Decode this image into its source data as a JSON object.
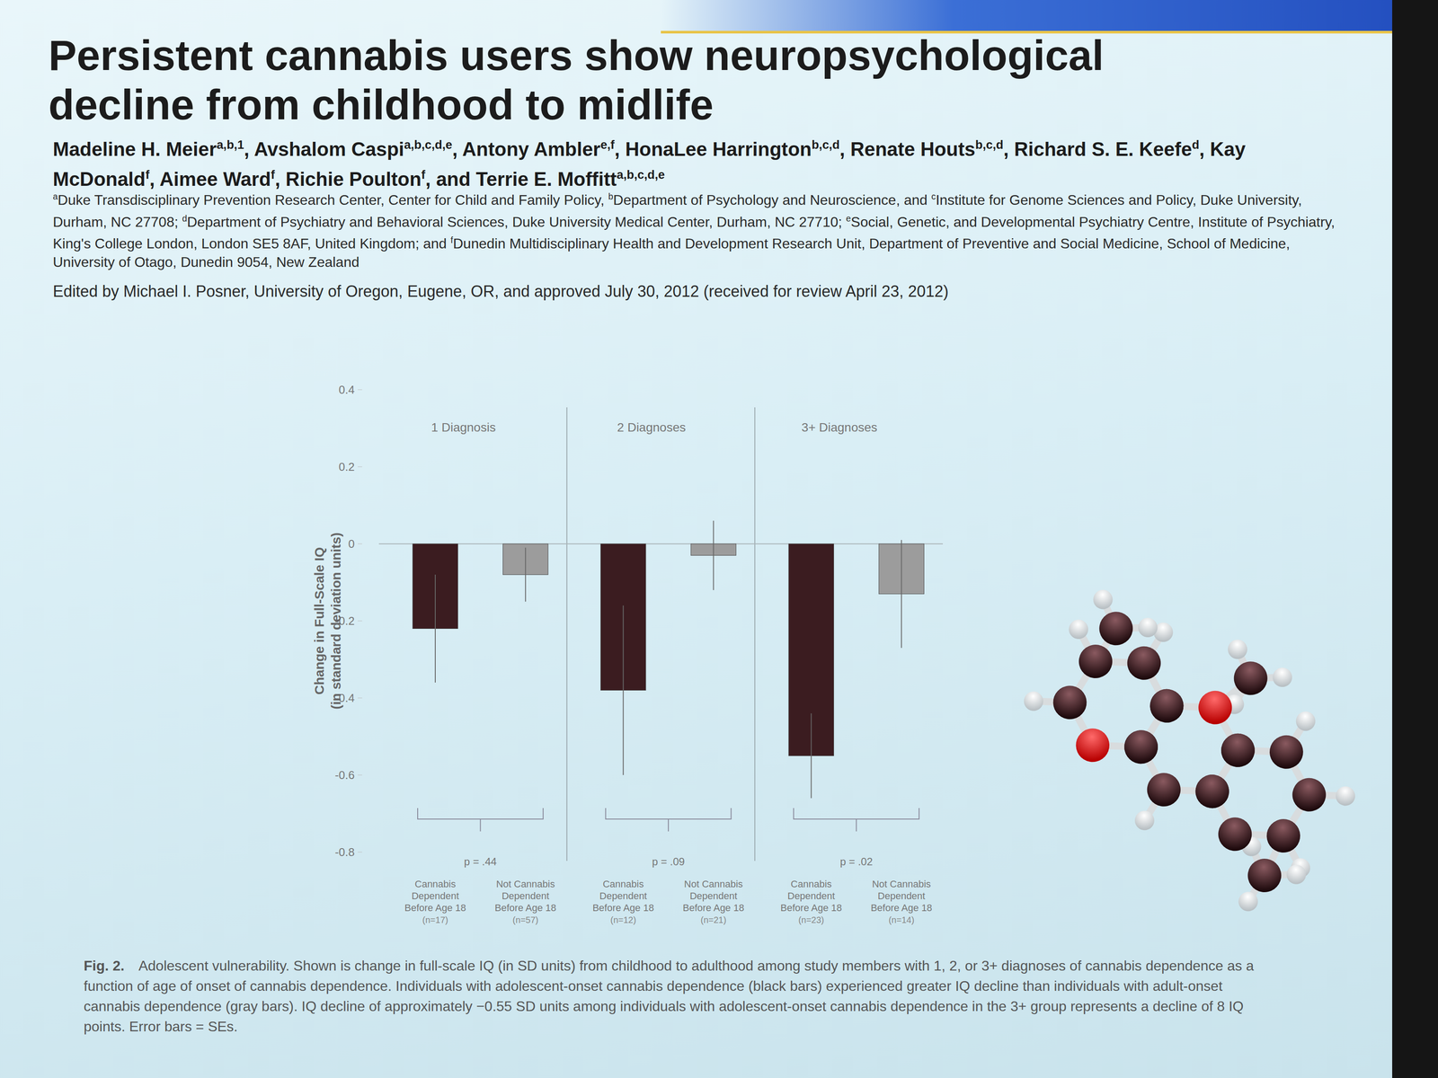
{
  "paper": {
    "title": [
      "Persistent cannabis users show neuropsychological",
      "decline from childhood to midlife"
    ],
    "authors": [
      {
        "text": "Madeline H. Meier",
        "sup": "a,b,1"
      },
      {
        "text": ", Avshalom Caspi",
        "sup": "a,b,c,d,e"
      },
      {
        "text": ", Antony Ambler",
        "sup": "e,f"
      },
      {
        "text": ", HonaLee Harrington",
        "sup": "b,c,d"
      },
      {
        "text": ", Renate Houts",
        "sup": "b,c,d"
      },
      {
        "text": ", Richard S. E. Keefe",
        "sup": "d"
      },
      {
        "text": ", Kay McDonald",
        "sup": "f"
      },
      {
        "text": ", Aimee Ward",
        "sup": "f"
      },
      {
        "text": ", Richie Poulton",
        "sup": "f"
      },
      {
        "text": ", and Terrie E. Moffitt",
        "sup": "a,b,c,d,e"
      }
    ],
    "affiliations": [
      {
        "sup": "a",
        "text": "Duke Transdisciplinary Prevention Research Center, Center for Child and Family Policy, "
      },
      {
        "sup": "b",
        "text": "Department of Psychology and Neuroscience, and "
      },
      {
        "sup": "c",
        "text": "Institute for Genome Sciences and Policy, Duke University, Durham, NC 27708; "
      },
      {
        "sup": "d",
        "text": "Department of Psychiatry and Behavioral Sciences, Duke University Medical Center, Durham, NC 27710; "
      },
      {
        "sup": "e",
        "text": "Social, Genetic, and Developmental Psychiatry Centre, Institute of Psychiatry, King's College London, London SE5 8AF, United Kingdom; and "
      },
      {
        "sup": "f",
        "text": "Dunedin Multidisciplinary Health and Development Research Unit, Department of Preventive and Social Medicine, School of Medicine, University of Otago, Dunedin 9054, New Zealand"
      }
    ],
    "edited_by": "Edited by Michael I. Posner, University of Oregon, Eugene, OR, and approved July 30, 2012 (received for review April 23, 2012)",
    "caption": {
      "label": "Fig. 2.",
      "text": "Adolescent vulnerability. Shown is change in full-scale IQ (in SD units) from childhood to adulthood among study members with 1, 2, or 3+ diagnoses of cannabis dependence as a function of age of onset of cannabis dependence. Individuals with adolescent-onset cannabis dependence (black bars) experienced greater IQ decline than individuals with adult-onset cannabis dependence (gray bars). IQ decline of approximately −0.55 SD units among individuals with adolescent-onset cannabis dependence in the 3+ group represents a decline of 8 IQ points. Error bars = SEs."
    }
  },
  "chart_data": {
    "type": "bar",
    "groups": [
      "1 Diagnosis",
      "2 Diagnoses",
      "3+ Diagnoses"
    ],
    "categories": [
      "Cannabis Dependent Before Age 18",
      "Not Cannabis Dependent Before Age 18",
      "Cannabis Dependent Before Age 18",
      "Not Cannabis Dependent Before Age 18",
      "Cannabis Dependent Before Age 18",
      "Not Cannabis Dependent Before Age 18"
    ],
    "n_labels": [
      "(n=17)",
      "(n=57)",
      "(n=12)",
      "(n=21)",
      "(n=23)",
      "(n=14)"
    ],
    "values": [
      -0.22,
      -0.08,
      -0.38,
      -0.03,
      -0.55,
      -0.13
    ],
    "errors": [
      0.14,
      0.07,
      0.22,
      0.09,
      0.11,
      0.14
    ],
    "colors": [
      "#3b1c20",
      "#9c9c9c",
      "#3b1c20",
      "#9c9c9c",
      "#3b1c20",
      "#9c9c9c"
    ],
    "p_labels": [
      "p = .44",
      "p = .09",
      "p = .02"
    ],
    "y_label": [
      "Change in Full-Scale IQ",
      "(in standard deviation units)"
    ],
    "ylim": [
      -0.8,
      0.4
    ],
    "yticks": [
      0.4,
      0.2,
      0,
      -0.2,
      -0.4,
      -0.6,
      -0.8
    ],
    "grid": false
  }
}
